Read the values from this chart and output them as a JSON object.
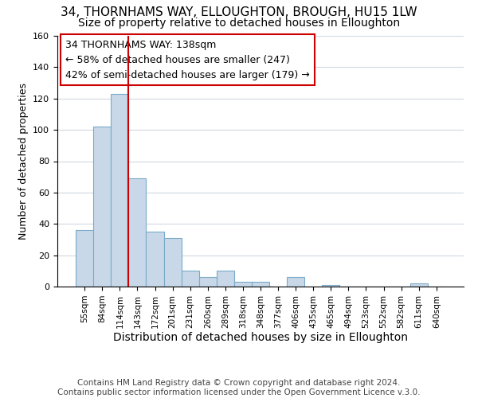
{
  "title": "34, THORNHAMS WAY, ELLOUGHTON, BROUGH, HU15 1LW",
  "subtitle": "Size of property relative to detached houses in Elloughton",
  "xlabel": "Distribution of detached houses by size in Elloughton",
  "ylabel": "Number of detached properties",
  "footer_line1": "Contains HM Land Registry data © Crown copyright and database right 2024.",
  "footer_line2": "Contains public sector information licensed under the Open Government Licence v.3.0.",
  "bar_labels": [
    "55sqm",
    "84sqm",
    "114sqm",
    "143sqm",
    "172sqm",
    "201sqm",
    "231sqm",
    "260sqm",
    "289sqm",
    "318sqm",
    "348sqm",
    "377sqm",
    "406sqm",
    "435sqm",
    "465sqm",
    "494sqm",
    "523sqm",
    "552sqm",
    "582sqm",
    "611sqm",
    "640sqm"
  ],
  "bar_heights": [
    36,
    102,
    123,
    69,
    35,
    31,
    10,
    6,
    10,
    3,
    3,
    0,
    6,
    0,
    1,
    0,
    0,
    0,
    0,
    2,
    0
  ],
  "bar_color": "#c8d8e8",
  "bar_edge_color": "#7aaac8",
  "annotation_box_text": "34 THORNHAMS WAY: 138sqm\n← 58% of detached houses are smaller (247)\n42% of semi-detached houses are larger (179) →",
  "vline_color": "#cc0000",
  "vline_x": 2.5,
  "ylim": [
    0,
    160
  ],
  "yticks": [
    0,
    20,
    40,
    60,
    80,
    100,
    120,
    140,
    160
  ],
  "title_fontsize": 11,
  "subtitle_fontsize": 10,
  "xlabel_fontsize": 10,
  "ylabel_fontsize": 9,
  "annotation_fontsize": 9,
  "footer_fontsize": 7.5,
  "background_color": "#ffffff",
  "grid_color": "#d0d8e0"
}
